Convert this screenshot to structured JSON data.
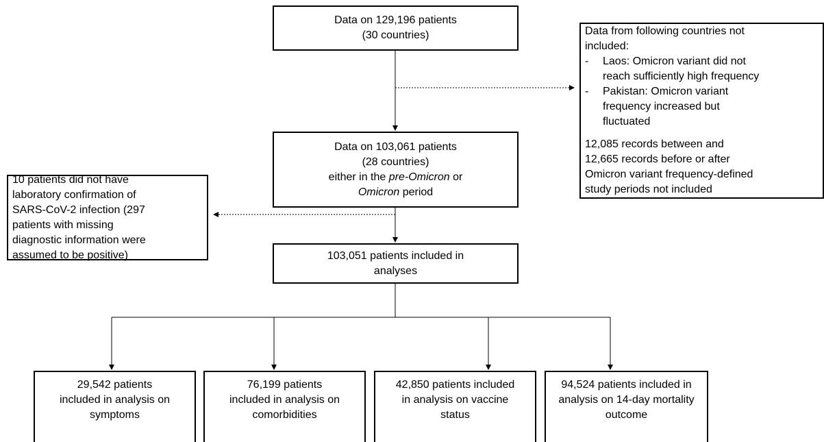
{
  "nodes": {
    "all_patients": {
      "lines": [
        [
          "Data on 129,196 patients"
        ],
        [
          "(30 countries)"
        ]
      ]
    },
    "excluded_countries": {
      "intro": [
        [
          "Data from following countries not"
        ],
        [
          "included:"
        ]
      ],
      "items": [
        {
          "marker": "-",
          "lines": [
            [
              "Laos: Omicron variant did not"
            ],
            [
              "reach sufficiently high frequency"
            ]
          ]
        },
        {
          "marker": "-",
          "lines": [
            [
              "Pakistan: Omicron variant"
            ],
            [
              "frequency increased but"
            ],
            [
              "fluctuated"
            ]
          ]
        }
      ],
      "note": [
        [
          "12,085 records between and"
        ],
        [
          "12,665 records before or after"
        ],
        [
          "Omicron variant frequency-defined"
        ],
        [
          "study periods not included"
        ]
      ]
    },
    "period_patients": {
      "lines": [
        [
          "Data on 103,061 patients"
        ],
        [
          "(28 countries)"
        ],
        [
          "either in the ",
          {
            "text": "pre-Omicron",
            "italic": true
          },
          " or"
        ],
        [
          {
            "text": "Omicron",
            "italic": true
          },
          " period"
        ]
      ]
    },
    "excluded_lab": {
      "lines": [
        [
          "10 patients did not have"
        ],
        [
          "laboratory confirmation of"
        ],
        [
          "SARS-CoV-2 infection (297"
        ],
        [
          "patients with missing"
        ],
        [
          "diagnostic information were"
        ],
        [
          "assumed to be positive)"
        ]
      ]
    },
    "included": {
      "lines": [
        [
          "103,051 patients included in"
        ],
        [
          "analyses"
        ]
      ]
    },
    "symptoms": {
      "lines": [
        [
          "29,542 patients"
        ],
        [
          "included in analysis on"
        ],
        [
          "symptoms"
        ]
      ]
    },
    "comorbidities": {
      "lines": [
        [
          "76,199 patients"
        ],
        [
          "included in analysis on"
        ],
        [
          "comorbidities"
        ]
      ]
    },
    "vaccine": {
      "lines": [
        [
          "42,850 patients included"
        ],
        [
          "in analysis on vaccine"
        ],
        [
          "status"
        ]
      ]
    },
    "mortality": {
      "lines": [
        [
          "94,524 patients included in"
        ],
        [
          "analysis on 14-day mortality"
        ],
        [
          "outcome"
        ]
      ]
    }
  }
}
